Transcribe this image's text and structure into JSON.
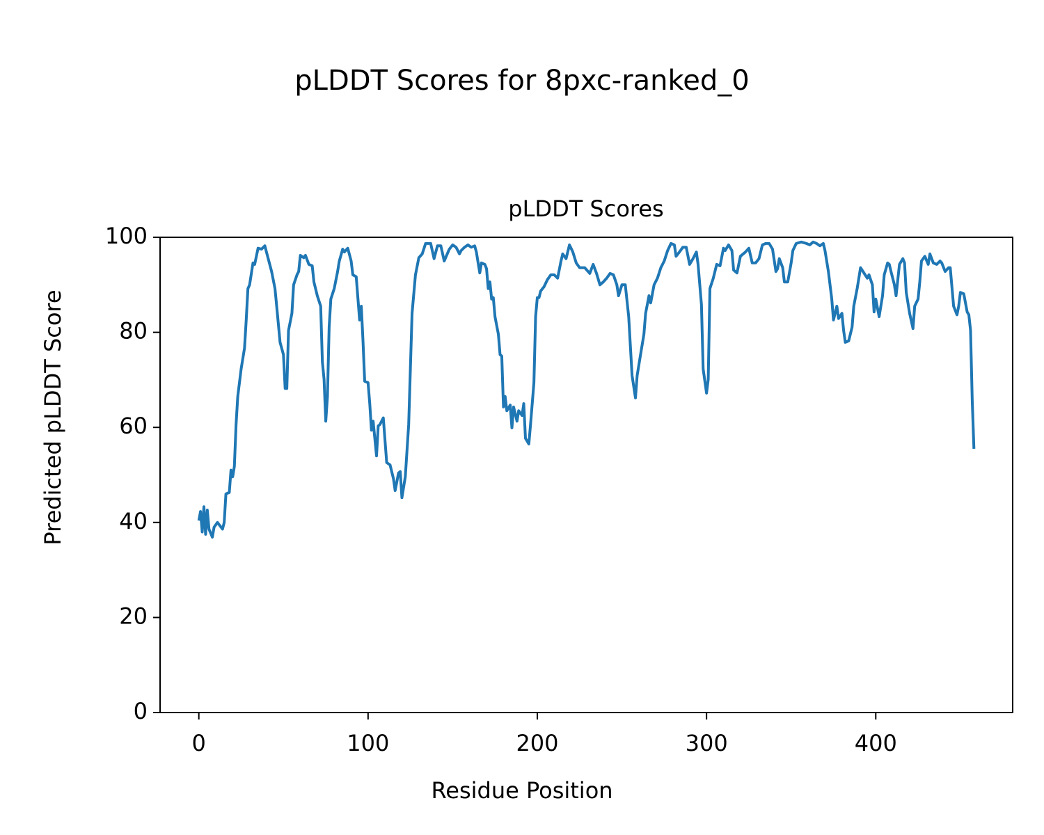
{
  "chart_data": {
    "type": "line",
    "title": "pLDDT Scores for 8pxc-ranked_0",
    "subtitle": "pLDDT Scores",
    "x_label": "Residue Position",
    "y_label": "Predicted pLDDT Score",
    "color": "#1f77b4",
    "x": [
      0,
      1,
      2,
      3,
      4,
      5,
      6,
      8,
      9,
      11,
      14,
      15,
      16,
      18,
      19,
      20,
      21,
      22,
      23,
      25,
      27,
      28,
      29,
      30,
      32,
      33,
      35,
      37,
      39,
      41,
      43,
      45,
      46,
      48,
      50,
      51,
      52,
      53,
      55,
      56,
      58,
      59,
      60,
      62,
      63,
      65,
      67,
      68,
      70,
      72,
      73,
      74,
      75,
      76,
      77,
      78,
      80,
      82,
      83,
      85,
      86,
      88,
      90,
      91,
      93,
      95,
      96,
      97,
      98,
      100,
      101,
      102,
      103,
      105,
      106,
      107,
      109,
      111,
      113,
      115,
      116,
      118,
      119,
      120,
      122,
      124,
      126,
      128,
      130,
      132,
      134,
      137,
      139,
      141,
      143,
      145,
      148,
      150,
      152,
      154,
      155,
      157,
      159,
      161,
      163,
      164,
      166,
      167,
      169,
      170,
      171,
      172,
      173,
      174,
      175,
      177,
      178,
      179,
      180,
      181,
      182,
      184,
      185,
      186,
      188,
      189,
      191,
      192,
      193,
      195,
      196,
      198,
      199,
      200,
      201,
      202,
      204,
      206,
      208,
      210,
      212,
      214,
      215,
      217,
      219,
      221,
      223,
      225,
      228,
      231,
      233,
      235,
      237,
      239,
      241,
      243,
      245,
      247,
      248,
      250,
      252,
      254,
      256,
      258,
      259,
      261,
      263,
      264,
      266,
      267,
      269,
      271,
      273,
      275,
      277,
      279,
      281,
      282,
      284,
      286,
      288,
      290,
      292,
      294,
      295,
      297,
      298,
      300,
      301,
      302,
      304,
      306,
      308,
      310,
      311,
      313,
      315,
      316,
      318,
      320,
      323,
      325,
      327,
      329,
      331,
      333,
      335,
      337,
      339,
      341,
      342,
      343,
      345,
      346,
      348,
      350,
      351,
      353,
      356,
      359,
      361,
      363,
      365,
      367,
      369,
      370,
      372,
      374,
      375,
      377,
      378,
      380,
      381,
      382,
      384,
      386,
      387,
      389,
      391,
      393,
      395,
      396,
      398,
      399,
      400,
      402,
      404,
      405,
      407,
      408,
      409,
      411,
      412,
      414,
      416,
      417,
      418,
      420,
      422,
      423,
      425,
      426,
      427,
      429,
      431,
      432,
      434,
      436,
      438,
      439,
      441,
      443,
      444,
      446,
      448,
      449,
      450,
      452,
      454,
      455,
      456,
      457,
      458
    ],
    "values": [
      40.4,
      42.3,
      38,
      43.3,
      37.5,
      42.6,
      38.6,
      36.9,
      39,
      40,
      38.6,
      40,
      46,
      46.3,
      51,
      49.6,
      51.8,
      60.6,
      66.5,
      72.3,
      76.7,
      82.6,
      89.2,
      90,
      94.6,
      94.3,
      97.7,
      97.5,
      98.2,
      95.5,
      92.8,
      89.2,
      85.5,
      77.9,
      75.3,
      68.2,
      68.2,
      80.4,
      84,
      90,
      92.1,
      92.8,
      96.2,
      95.7,
      96.2,
      94.3,
      94,
      90.6,
      87.7,
      85.5,
      73.8,
      70.1,
      61.3,
      66.5,
      81.1,
      87,
      89.2,
      92.8,
      95,
      97.5,
      96.9,
      97.7,
      95,
      92.1,
      91.7,
      82.6,
      85.5,
      78.2,
      69.7,
      69.4,
      65,
      59.4,
      61.3,
      54,
      60.3,
      60.6,
      62,
      52.6,
      52.1,
      49.2,
      46.7,
      50.4,
      50.7,
      45.2,
      49.6,
      60.6,
      84,
      92.1,
      95.7,
      96.5,
      98.7,
      98.7,
      95.5,
      98.2,
      98.2,
      95,
      97.5,
      98.4,
      97.9,
      96.5,
      97.2,
      97.9,
      98.4,
      97.9,
      98.2,
      96.9,
      92.5,
      94.6,
      94.3,
      93.4,
      89.2,
      90.6,
      87,
      87.3,
      83.3,
      79.6,
      75.3,
      75,
      64.3,
      66.5,
      63.5,
      64.7,
      59.9,
      64.3,
      61.3,
      63.5,
      62.5,
      65,
      57.7,
      56.5,
      60.6,
      69.4,
      83.3,
      87.3,
      87.3,
      88.7,
      89.6,
      91.1,
      92.1,
      92.1,
      91.4,
      95,
      96.5,
      95.5,
      98.4,
      96.9,
      94.6,
      93.6,
      93.6,
      92.4,
      94.3,
      92.4,
      90,
      90.6,
      91.4,
      92.4,
      92.1,
      90,
      87.7,
      90,
      90,
      83.3,
      70.9,
      66.2,
      70.9,
      75.3,
      79.6,
      84,
      87.7,
      86.2,
      90,
      91.4,
      93.6,
      95,
      97.2,
      98.7,
      98.4,
      96,
      96.9,
      97.9,
      97.9,
      94.3,
      95.5,
      96.9,
      94.3,
      85.8,
      72.3,
      67.2,
      70.1,
      89.2,
      91.4,
      94.3,
      94,
      97.7,
      97.2,
      98.4,
      97.2,
      93.1,
      92.5,
      96,
      96.9,
      97.7,
      94.6,
      94.6,
      95.5,
      98.4,
      98.7,
      98.7,
      97.5,
      92.8,
      93.4,
      95.5,
      93.6,
      90.6,
      90.6,
      94.6,
      97.2,
      98.7,
      99,
      98.7,
      98.4,
      99,
      98.7,
      98.2,
      98.7,
      97.2,
      92.8,
      87,
      82.6,
      85.5,
      82.9,
      84,
      80.4,
      77.9,
      78.2,
      81.1,
      85.5,
      89.2,
      93.6,
      92.5,
      91.4,
      92.1,
      90,
      84.3,
      87,
      83.3,
      87.7,
      92.1,
      94.6,
      94.3,
      92.8,
      90,
      87.7,
      94.3,
      95.5,
      94.6,
      88.4,
      84,
      80.8,
      85.5,
      87,
      90.6,
      95,
      96,
      94.3,
      96.5,
      94.6,
      94.3,
      95,
      94.6,
      92.8,
      93.6,
      93.6,
      85.5,
      83.7,
      85.5,
      88.4,
      88.1,
      84.3,
      83.7,
      80.4,
      65.7,
      55.5
    ],
    "xlim": [
      -22.9,
      480.9
    ],
    "ylim": [
      0,
      100
    ],
    "xticks": [
      0,
      100,
      200,
      300,
      400
    ],
    "yticks": [
      0,
      20,
      40,
      60,
      80,
      100
    ]
  }
}
